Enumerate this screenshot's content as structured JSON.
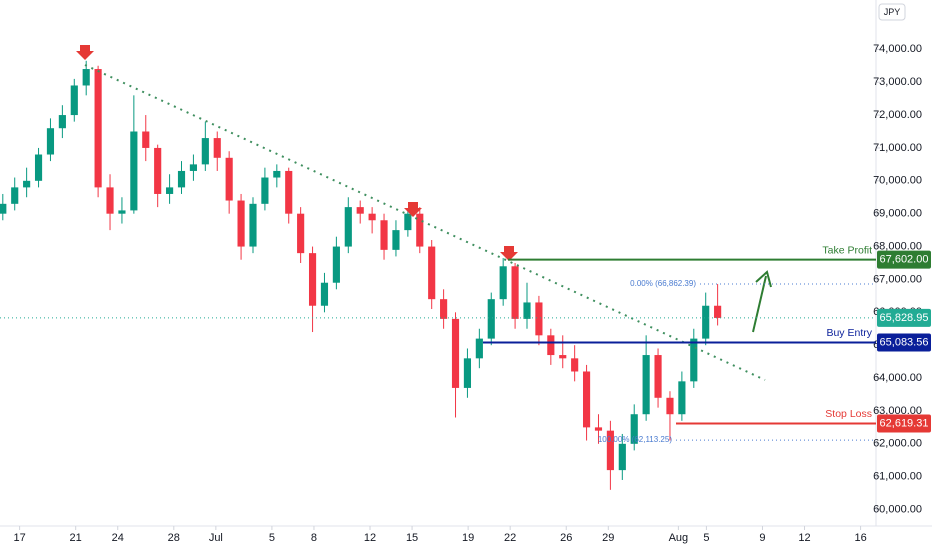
{
  "chart_data": {
    "type": "candlestick",
    "currency": "JPY",
    "ylim": [
      59500,
      75500
    ],
    "xlim": [
      15.6,
      78.1
    ],
    "yticks": [
      {
        "value": 60000,
        "label": "60,000.00"
      },
      {
        "value": 61000,
        "label": "61,000.00"
      },
      {
        "value": 62000,
        "label": "62,000.00"
      },
      {
        "value": 63000,
        "label": "63,000.00"
      },
      {
        "value": 64000,
        "label": "64,000.00"
      },
      {
        "value": 65000,
        "label": "65,000.00"
      },
      {
        "value": 66000,
        "label": "66,000.00"
      },
      {
        "value": 67000,
        "label": "67,000.00"
      },
      {
        "value": 68000,
        "label": "68,000.00"
      },
      {
        "value": 69000,
        "label": "69,000.00"
      },
      {
        "value": 70000,
        "label": "70,000.00"
      },
      {
        "value": 71000,
        "label": "71,000.00"
      },
      {
        "value": 72000,
        "label": "72,000.00"
      },
      {
        "value": 73000,
        "label": "73,000.00"
      },
      {
        "value": 74000,
        "label": "74,000.00"
      }
    ],
    "xticks": [
      17,
      21,
      24,
      28,
      {
        "value": 31,
        "label": "Jul"
      },
      {
        "value": 35,
        "label": "5"
      },
      {
        "value": 38,
        "label": "8"
      },
      {
        "value": 42,
        "label": "12"
      },
      {
        "value": 45,
        "label": "15"
      },
      {
        "value": 49,
        "label": "19"
      },
      {
        "value": 52,
        "label": "22"
      },
      {
        "value": 56,
        "label": "26"
      },
      {
        "value": 59,
        "label": "29"
      },
      {
        "value": 64,
        "label": "Aug"
      },
      {
        "value": 66,
        "label": "5"
      },
      {
        "value": 70,
        "label": "9"
      },
      {
        "value": 73,
        "label": "12"
      },
      {
        "value": 77,
        "label": "16"
      }
    ],
    "up_color": "#089981",
    "down_color": "#f23645",
    "candles": {
      "x": [
        15.8,
        16.65,
        17.5,
        18.35,
        19.2,
        20.05,
        20.9,
        21.75,
        22.6,
        23.45,
        24.3,
        25.15,
        26.0,
        26.85,
        27.7,
        28.55,
        29.4,
        30.25,
        31.1,
        31.95,
        32.8,
        33.65,
        34.5,
        35.35,
        36.2,
        37.05,
        37.9,
        38.75,
        39.6,
        40.45,
        41.3,
        42.15,
        43.0,
        43.85,
        44.7,
        45.55,
        46.4,
        47.25,
        48.1,
        48.95,
        49.8,
        50.65,
        51.5,
        52.35,
        53.2,
        54.05,
        54.9,
        55.75,
        56.6,
        57.45,
        58.3,
        59.15,
        60.0,
        60.85,
        61.7,
        62.55,
        63.4,
        64.25,
        65.1,
        65.95,
        66.8
      ],
      "open": [
        69000,
        69300,
        69800,
        70000,
        70800,
        71600,
        72000,
        72900,
        73400,
        69800,
        69000,
        69100,
        71500,
        71000,
        69600,
        69800,
        70300,
        70500,
        71300,
        70700,
        69400,
        68000,
        69300,
        70100,
        70300,
        69000,
        67800,
        66200,
        66900,
        68000,
        69200,
        69000,
        68800,
        67900,
        68500,
        69000,
        68000,
        66400,
        65800,
        63700,
        64600,
        65200,
        66400,
        67400,
        65800,
        66300,
        65300,
        64700,
        64600,
        64200,
        62500,
        62400,
        61200,
        62000,
        62900,
        64700,
        63400,
        62900,
        63900,
        65200,
        66200
      ],
      "high": [
        69600,
        70100,
        70400,
        71000,
        71900,
        72300,
        73100,
        73650,
        73500,
        70200,
        69500,
        72600,
        72000,
        71100,
        70200,
        70600,
        70800,
        71800,
        71500,
        70900,
        69600,
        69500,
        70400,
        70500,
        70400,
        69200,
        68000,
        67200,
        68300,
        69500,
        69400,
        69200,
        69000,
        68800,
        69100,
        69200,
        68200,
        66700,
        66000,
        64900,
        65500,
        66600,
        67650,
        67500,
        66900,
        66500,
        65500,
        65300,
        65000,
        64400,
        62900,
        62700,
        62300,
        63200,
        65300,
        64900,
        63600,
        64200,
        65500,
        66600,
        66860
      ],
      "low": [
        68800,
        69100,
        69500,
        69800,
        70600,
        71300,
        71800,
        72600,
        69500,
        68500,
        68700,
        69000,
        70600,
        69200,
        69300,
        69600,
        70000,
        70300,
        70300,
        69000,
        67600,
        67800,
        69100,
        69800,
        68700,
        67500,
        65400,
        66000,
        66700,
        67800,
        68700,
        68400,
        67600,
        67700,
        68300,
        67800,
        66100,
        65500,
        62800,
        63400,
        64300,
        65000,
        66200,
        65500,
        65500,
        65000,
        64400,
        64300,
        63900,
        62100,
        62000,
        60600,
        60900,
        61800,
        62700,
        63100,
        62100,
        62700,
        63700,
        65000,
        65600
      ],
      "close": [
        69300,
        69800,
        70000,
        70800,
        71600,
        72000,
        72900,
        73400,
        69800,
        69000,
        69100,
        71500,
        71000,
        69600,
        69800,
        70300,
        70500,
        71300,
        70700,
        69400,
        68000,
        69300,
        70100,
        70300,
        69000,
        67800,
        66200,
        66900,
        68000,
        69200,
        69000,
        68800,
        67900,
        68500,
        69000,
        68000,
        66400,
        65800,
        63700,
        64600,
        65200,
        66400,
        67400,
        65800,
        66300,
        65300,
        64700,
        64600,
        64200,
        62500,
        62400,
        61200,
        62000,
        62900,
        64700,
        63400,
        62900,
        63900,
        65200,
        66200,
        65828.95
      ]
    },
    "last_price": {
      "value": 65828.95,
      "label": "65,828.95",
      "color": "#22ab94"
    },
    "levels": [
      {
        "name": "Take Profit",
        "value": 67602,
        "label": "67,602.00",
        "color": "#2e7d32"
      },
      {
        "name": "Buy Entry",
        "value": 65083.56,
        "label": "65,083.56",
        "color": "#0a1f9a"
      },
      {
        "name": "Stop Loss",
        "value": 62619.31,
        "label": "62,619.31",
        "color": "#e53935"
      }
    ],
    "fib_levels": [
      {
        "value": 66862.39,
        "label": "0.00% (66,862.39)"
      },
      {
        "value": 62113.25,
        "label": "100.00% (62,113.25)"
      }
    ]
  }
}
